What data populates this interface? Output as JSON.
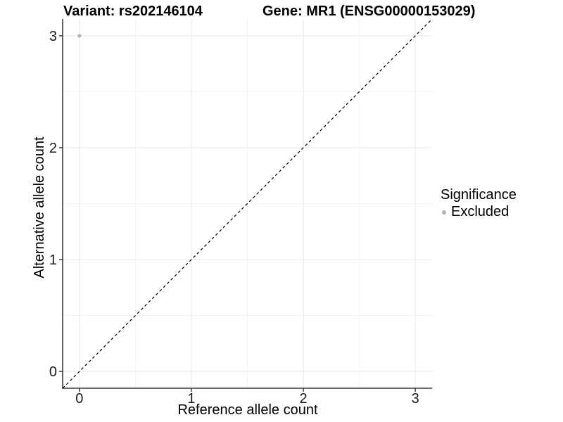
{
  "chart_data": {
    "type": "scatter",
    "title_left": "Variant: rs202146104",
    "title_right": "Gene: MR1 (ENSG00000153029)",
    "xlabel": "Reference allele count",
    "ylabel": "Alternative allele count",
    "xlim": [
      -0.15,
      3.15
    ],
    "ylim": [
      -0.15,
      3.15
    ],
    "x_ticks": [
      0,
      1,
      2,
      3
    ],
    "y_ticks": [
      0,
      1,
      2,
      3
    ],
    "x_minor_ticks": [
      0.5,
      1.5,
      2.5
    ],
    "y_minor_ticks": [
      0.5,
      1.5,
      2.5
    ],
    "grid": "major+minor",
    "legend": {
      "title": "Significance",
      "position": "right",
      "items": [
        {
          "label": "Excluded",
          "color": "#b3b3b3"
        }
      ]
    },
    "series": [
      {
        "name": "Excluded",
        "color": "#b3b3b3",
        "marker": "circle",
        "marker_radius": 2.6,
        "points": [
          [
            0,
            3
          ]
        ]
      }
    ],
    "reference_line": {
      "kind": "identity",
      "intercept": 0,
      "slope": 1,
      "style": "dashed",
      "color": "#000000"
    }
  },
  "colors": {
    "background": "#ffffff",
    "grid_major": "#e8e8e8",
    "grid_minor": "#f3f3f3",
    "axis_line": "#3a3a3a",
    "tick_mark": "#333333",
    "tick_label": "#1a1a1a",
    "text": "#000000"
  }
}
